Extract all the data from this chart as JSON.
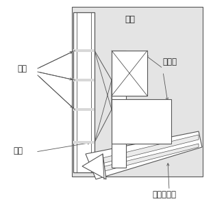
{
  "line_color": "#555555",
  "fill_gray": "#d8d8d8",
  "fill_light": "#ebebeb",
  "fill_white": "#ffffff",
  "fill_dot": "#e4e4e4",
  "text_color": "#222222",
  "labels": {
    "tudang": "土舱",
    "pandisk": "刀盘",
    "pandisk_arm": "刀盘臂",
    "hole": "孔道",
    "screw": "螺旋排土器"
  },
  "fig_w": 3.11,
  "fig_h": 3.04,
  "dpi": 100
}
